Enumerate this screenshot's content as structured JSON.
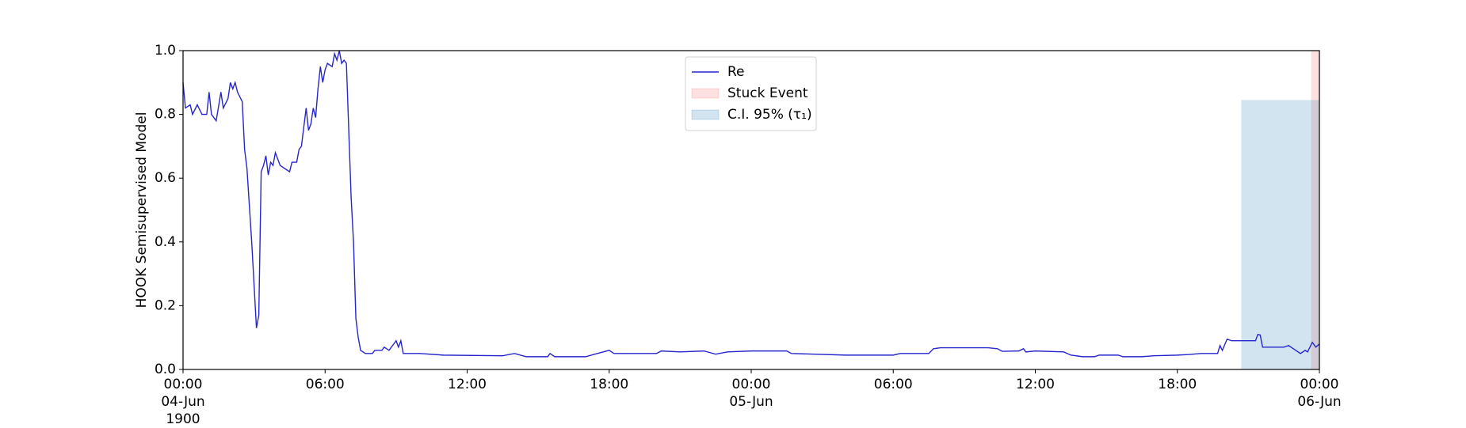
{
  "chart_data": {
    "type": "line",
    "ylabel": "HOOK Semisupervised Model",
    "xlim": [
      "1900-06-04 00:00",
      "1900-06-06 00:00"
    ],
    "ylim": [
      0,
      1
    ],
    "xticks": [
      {
        "value": "1900-06-04 00:00",
        "label": "00:00\n04-Jun\n1900"
      },
      {
        "value": "1900-06-04 06:00",
        "label": "06:00"
      },
      {
        "value": "1900-06-04 12:00",
        "label": "12:00"
      },
      {
        "value": "1900-06-04 18:00",
        "label": "18:00"
      },
      {
        "value": "1900-06-05 00:00",
        "label": "00:00\n05-Jun"
      },
      {
        "value": "1900-06-05 06:00",
        "label": "06:00"
      },
      {
        "value": "1900-06-05 12:00",
        "label": "12:00"
      },
      {
        "value": "1900-06-05 18:00",
        "label": "18:00"
      },
      {
        "value": "1900-06-06 00:00",
        "label": "00:00\n06-Jun"
      }
    ],
    "yticks": [
      {
        "value": 0,
        "label": "0.0"
      },
      0.2,
      0.4,
      0.6,
      0.8,
      {
        "value": 1,
        "label": "1.0"
      }
    ],
    "legend": "upper center",
    "x": [
      "1900-06-04 00:00",
      "1900-06-04 00:06",
      "1900-06-04 00:18",
      "1900-06-04 00:24",
      "1900-06-04 00:36",
      "1900-06-04 00:48",
      "1900-06-04 01:00",
      "1900-06-04 01:06",
      "1900-06-04 01:12",
      "1900-06-04 01:24",
      "1900-06-04 01:36",
      "1900-06-04 01:42",
      "1900-06-04 01:54",
      "1900-06-04 02:00",
      "1900-06-04 02:06",
      "1900-06-04 02:12",
      "1900-06-04 02:18",
      "1900-06-04 02:30",
      "1900-06-04 02:36",
      "1900-06-04 02:42",
      "1900-06-04 02:54",
      "1900-06-04 03:06",
      "1900-06-04 03:12",
      "1900-06-04 03:18",
      "1900-06-04 03:24",
      "1900-06-04 03:30",
      "1900-06-04 03:36",
      "1900-06-04 03:42",
      "1900-06-04 03:48",
      "1900-06-04 03:54",
      "1900-06-04 04:06",
      "1900-06-04 04:18",
      "1900-06-04 04:30",
      "1900-06-04 04:36",
      "1900-06-04 04:48",
      "1900-06-04 04:54",
      "1900-06-04 05:00",
      "1900-06-04 05:06",
      "1900-06-04 05:12",
      "1900-06-04 05:18",
      "1900-06-04 05:24",
      "1900-06-04 05:30",
      "1900-06-04 05:36",
      "1900-06-04 05:42",
      "1900-06-04 05:48",
      "1900-06-04 05:54",
      "1900-06-04 06:00",
      "1900-06-04 06:06",
      "1900-06-04 06:18",
      "1900-06-04 06:24",
      "1900-06-04 06:30",
      "1900-06-04 06:36",
      "1900-06-04 06:42",
      "1900-06-04 06:48",
      "1900-06-04 06:54",
      "1900-06-04 07:06",
      "1900-06-04 07:12",
      "1900-06-04 07:18",
      "1900-06-04 07:24",
      "1900-06-04 07:30",
      "1900-06-04 07:42",
      "1900-06-04 08:00",
      "1900-06-04 08:06",
      "1900-06-04 08:24",
      "1900-06-04 08:30",
      "1900-06-04 08:42",
      "1900-06-04 08:54",
      "1900-06-04 09:00",
      "1900-06-04 09:06",
      "1900-06-04 09:12",
      "1900-06-04 09:18",
      "1900-06-04 10:00",
      "1900-06-04 11:00",
      "1900-06-04 13:30",
      "1900-06-04 14:00",
      "1900-06-04 14:30",
      "1900-06-04 15:24",
      "1900-06-04 15:30",
      "1900-06-04 15:42",
      "1900-06-04 17:00",
      "1900-06-04 17:30",
      "1900-06-04 18:00",
      "1900-06-04 18:12",
      "1900-06-04 20:00",
      "1900-06-04 20:12",
      "1900-06-04 21:00",
      "1900-06-04 22:00",
      "1900-06-04 22:30",
      "1900-06-04 23:00",
      "1900-06-05 00:00",
      "1900-06-05 01:30",
      "1900-06-05 01:42",
      "1900-06-05 04:00",
      "1900-06-05 06:00",
      "1900-06-05 06:18",
      "1900-06-05 07:30",
      "1900-06-05 07:42",
      "1900-06-05 08:00",
      "1900-06-05 10:00",
      "1900-06-05 10:24",
      "1900-06-05 10:36",
      "1900-06-05 11:18",
      "1900-06-05 11:30",
      "1900-06-05 11:36",
      "1900-06-05 12:00",
      "1900-06-05 13:12",
      "1900-06-05 13:30",
      "1900-06-05 14:00",
      "1900-06-05 14:30",
      "1900-06-05 14:42",
      "1900-06-05 15:30",
      "1900-06-05 15:42",
      "1900-06-05 16:30",
      "1900-06-05 17:00",
      "1900-06-05 18:00",
      "1900-06-05 18:30",
      "1900-06-05 19:00",
      "1900-06-05 19:42",
      "1900-06-05 19:48",
      "1900-06-05 19:54",
      "1900-06-05 20:06",
      "1900-06-05 20:18",
      "1900-06-05 21:18",
      "1900-06-05 21:24",
      "1900-06-05 21:30",
      "1900-06-05 21:36",
      "1900-06-05 22:30",
      "1900-06-05 22:42",
      "1900-06-05 23:00",
      "1900-06-05 23:12",
      "1900-06-05 23:24",
      "1900-06-05 23:30",
      "1900-06-05 23:42",
      "1900-06-05 23:51",
      "1900-06-06 00:00"
    ],
    "series": [
      {
        "name": "Re",
        "color": "#2626cc",
        "values": [
          0.9,
          0.82,
          0.83,
          0.8,
          0.83,
          0.8,
          0.8,
          0.87,
          0.8,
          0.78,
          0.87,
          0.82,
          0.85,
          0.9,
          0.88,
          0.9,
          0.87,
          0.84,
          0.69,
          0.63,
          0.4,
          0.13,
          0.17,
          0.62,
          0.64,
          0.67,
          0.61,
          0.65,
          0.64,
          0.68,
          0.64,
          0.63,
          0.62,
          0.65,
          0.65,
          0.69,
          0.7,
          0.76,
          0.82,
          0.75,
          0.77,
          0.82,
          0.79,
          0.88,
          0.95,
          0.9,
          0.94,
          0.96,
          0.95,
          0.99,
          0.97,
          1.0,
          0.96,
          0.97,
          0.96,
          0.54,
          0.4,
          0.16,
          0.1,
          0.06,
          0.05,
          0.05,
          0.06,
          0.06,
          0.07,
          0.06,
          0.08,
          0.09,
          0.07,
          0.09,
          0.05,
          0.05,
          0.045,
          0.043,
          0.05,
          0.04,
          0.04,
          0.05,
          0.04,
          0.04,
          0.05,
          0.06,
          0.05,
          0.05,
          0.058,
          0.055,
          0.058,
          0.048,
          0.055,
          0.058,
          0.058,
          0.05,
          0.045,
          0.045,
          0.05,
          0.05,
          0.065,
          0.068,
          0.068,
          0.065,
          0.057,
          0.058,
          0.065,
          0.055,
          0.058,
          0.055,
          0.045,
          0.04,
          0.04,
          0.045,
          0.045,
          0.04,
          0.04,
          0.043,
          0.045,
          0.047,
          0.05,
          0.05,
          0.075,
          0.06,
          0.095,
          0.09,
          0.09,
          0.11,
          0.108,
          0.07,
          0.07,
          0.075,
          0.06,
          0.05,
          0.06,
          0.055,
          0.085,
          0.07,
          0.08
        ]
      }
    ],
    "spans": [
      {
        "name": "Stuck Event",
        "color": "rgba(255,0,0,0.12)",
        "x": [
          "1900-06-05 23:39",
          "1900-06-06 00:00"
        ]
      },
      {
        "name": "C.I. 95% (τ₁)",
        "color": "rgba(31,119,180,0.2)",
        "x": [
          "1900-06-05 20:42",
          "1900-06-06 00:00"
        ],
        "y": [
          0,
          0.845
        ]
      }
    ]
  }
}
